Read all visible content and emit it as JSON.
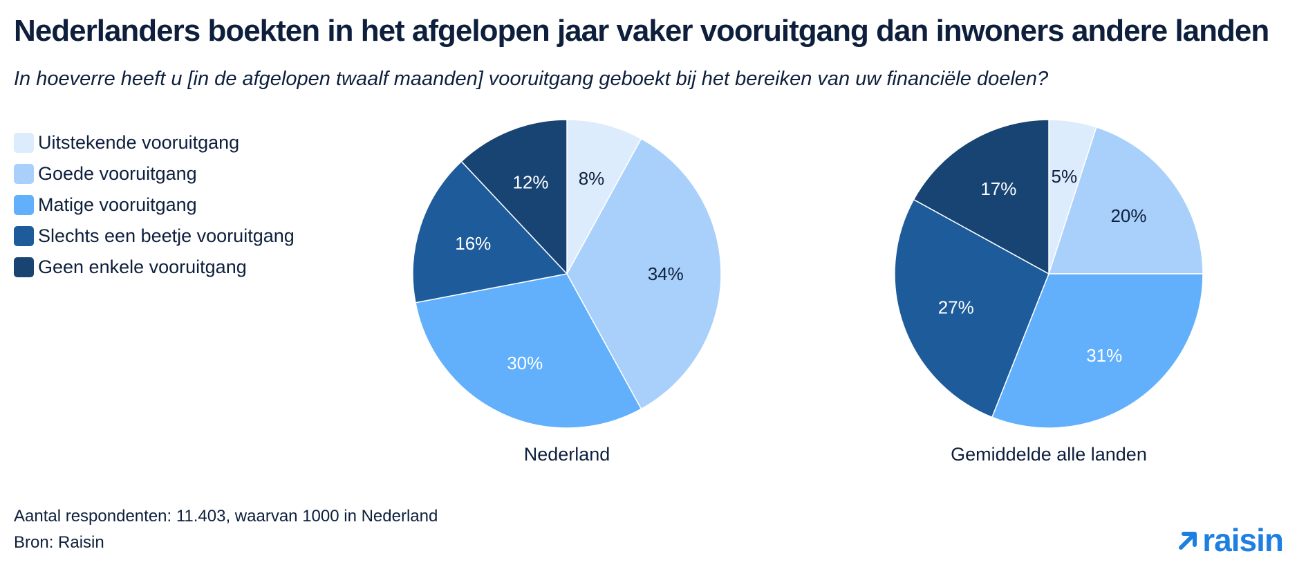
{
  "title": "Nederlanders boekten in het afgelopen jaar vaker vooruitgang dan inwoners andere landen",
  "subtitle": "In hoeverre heeft u [in de afgelopen twaalf maanden] vooruitgang geboekt bij het bereiken van uw financiële doelen?",
  "legend": [
    {
      "label": "Uitstekende vooruitgang",
      "color": "#dcecfd"
    },
    {
      "label": "Goede vooruitgang",
      "color": "#a8d0fb"
    },
    {
      "label": "Matige vooruitgang",
      "color": "#62b0fb"
    },
    {
      "label": "Slechts een beetje vooruitgang",
      "color": "#1e5b9a"
    },
    {
      "label": "Geen enkele vooruitgang",
      "color": "#184474"
    }
  ],
  "chart_data": [
    {
      "type": "pie",
      "title": "Nederland",
      "categories": [
        "Uitstekende vooruitgang",
        "Goede vooruitgang",
        "Matige vooruitgang",
        "Slechts een beetje vooruitgang",
        "Geen enkele vooruitgang"
      ],
      "values": [
        8,
        34,
        30,
        16,
        12
      ],
      "labels": [
        "8%",
        "34%",
        "30%",
        "16%",
        "12%"
      ],
      "colors": [
        "#dcecfd",
        "#a8d0fb",
        "#62b0fb",
        "#1e5b9a",
        "#184474"
      ],
      "label_colors": [
        "#0d1f3c",
        "#0d1f3c",
        "#ffffff",
        "#ffffff",
        "#ffffff"
      ],
      "legend": "left"
    },
    {
      "type": "pie",
      "title": "Gemiddelde alle landen",
      "categories": [
        "Uitstekende vooruitgang",
        "Goede vooruitgang",
        "Matige vooruitgang",
        "Slechts een beetje vooruitgang",
        "Geen enkele vooruitgang"
      ],
      "values": [
        5,
        20,
        31,
        27,
        17
      ],
      "labels": [
        "5%",
        "20%",
        "31%",
        "27%",
        "17%"
      ],
      "colors": [
        "#dcecfd",
        "#a8d0fb",
        "#62b0fb",
        "#1e5b9a",
        "#184474"
      ],
      "label_colors": [
        "#0d1f3c",
        "#0d1f3c",
        "#ffffff",
        "#ffffff",
        "#ffffff"
      ],
      "legend": "left"
    }
  ],
  "footer": {
    "note": "Aantal respondenten: 11.403, waarvan 1000 in Nederland",
    "source": "Bron: Raisin"
  },
  "logo": {
    "text": "raisin",
    "icon": "arrow-up-right-icon",
    "color": "#1d7fe0"
  }
}
